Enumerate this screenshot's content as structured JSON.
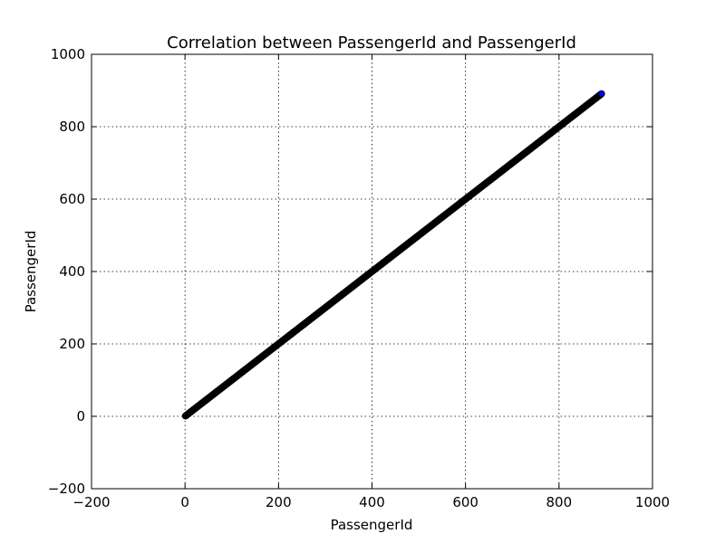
{
  "chart_data": {
    "type": "scatter",
    "title": "Correlation between PassengerId and PassengerId",
    "xlabel": "PassengerId",
    "ylabel": "PassengerId",
    "xlim": [
      -200,
      1000
    ],
    "ylim": [
      -200,
      1000
    ],
    "xticks": [
      -200,
      0,
      200,
      400,
      600,
      800,
      1000
    ],
    "yticks": [
      -200,
      0,
      200,
      400,
      600,
      800,
      1000
    ],
    "xtick_labels": [
      "−200",
      "0",
      "200",
      "400",
      "600",
      "800",
      "1000"
    ],
    "ytick_labels": [
      "−200",
      "0",
      "200",
      "400",
      "600",
      "800",
      "1000"
    ],
    "grid": true,
    "series": [
      {
        "name": "PassengerId",
        "marker_color": "#0000ff",
        "edge_color": "#000000",
        "x_range": [
          1,
          891
        ],
        "relation": "y = x"
      }
    ]
  }
}
